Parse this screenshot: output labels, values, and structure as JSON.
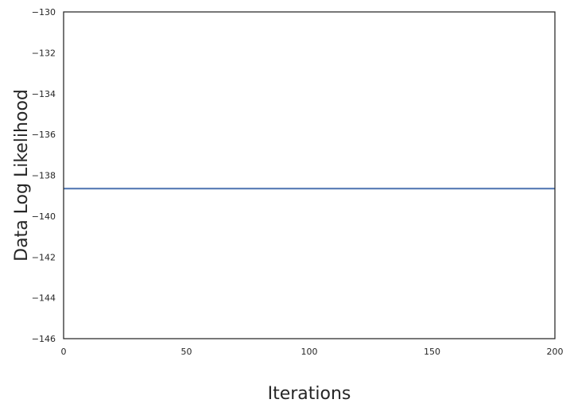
{
  "chart_data": {
    "type": "line",
    "title": "",
    "xlabel": "Iterations",
    "ylabel": "Data Log Likelihood",
    "xlim": [
      0,
      200
    ],
    "ylim": [
      -146,
      -130
    ],
    "x_ticks": [
      0,
      50,
      100,
      150,
      200
    ],
    "y_ticks": [
      -130,
      -132,
      -134,
      -136,
      -138,
      -140,
      -142,
      -144,
      -146
    ],
    "x_tick_labels": [
      "0",
      "50",
      "100",
      "150",
      "200"
    ],
    "y_tick_labels": [
      "−130",
      "−132",
      "−134",
      "−136",
      "−138",
      "−140",
      "−142",
      "−144",
      "−146"
    ],
    "grid": false,
    "series": [
      {
        "color": "#4c72b0",
        "x": [
          0,
          200
        ],
        "y": [
          -138.65,
          -138.65
        ]
      }
    ]
  }
}
